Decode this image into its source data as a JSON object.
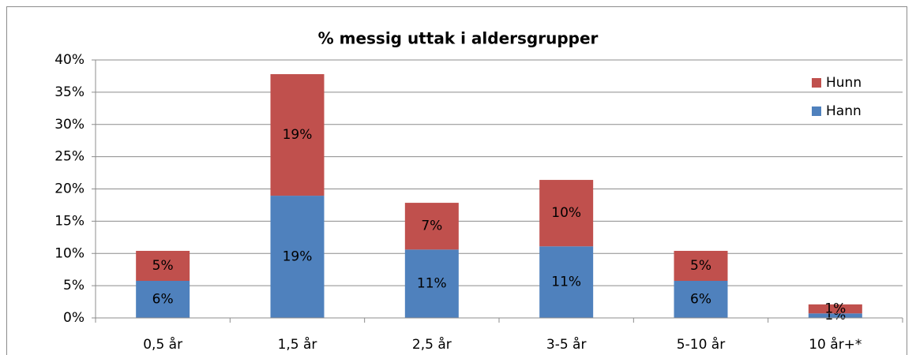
{
  "chart_data": {
    "type": "stacked-bar",
    "title": "% messig uttak i aldersgrupper",
    "categories": [
      "0,5 år",
      "1,5 år",
      "2,5 år",
      "3-5 år",
      "5-10 år",
      "10 år+*"
    ],
    "series": [
      {
        "name": "Hann",
        "color": "#4f81bd",
        "values": [
          5.75,
          18.95,
          10.6,
          11.1,
          5.75,
          0.7
        ],
        "value_labels": [
          "6%",
          "19%",
          "11%",
          "11%",
          "6%",
          "1%"
        ]
      },
      {
        "name": "Hunn",
        "color": "#c0504d",
        "values": [
          4.65,
          18.85,
          7.25,
          10.3,
          4.65,
          1.4
        ],
        "value_labels": [
          "5%",
          "19%",
          "7%",
          "10%",
          "5%",
          "1%"
        ]
      }
    ],
    "ylim": [
      0,
      40
    ],
    "yticks": [
      {
        "value": 0,
        "label": "0%"
      },
      {
        "value": 5,
        "label": "5%"
      },
      {
        "value": 10,
        "label": "10%"
      },
      {
        "value": 15,
        "label": "15%"
      },
      {
        "value": 20,
        "label": "20%"
      },
      {
        "value": 25,
        "label": "25%"
      },
      {
        "value": 30,
        "label": "30%"
      },
      {
        "value": 35,
        "label": "35%"
      },
      {
        "value": 40,
        "label": "40%"
      }
    ],
    "grid": true,
    "legend": "top-right"
  }
}
